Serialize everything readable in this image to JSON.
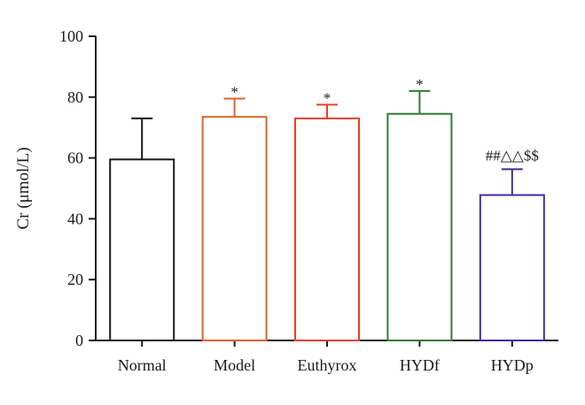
{
  "chart_data": {
    "type": "bar",
    "title": "",
    "xlabel": "",
    "ylabel": "Cr (μmol/L)",
    "ylim": [
      0,
      100
    ],
    "yticks": [
      0,
      20,
      40,
      60,
      80,
      100
    ],
    "grid": false,
    "categories": [
      "Normal",
      "Model",
      "Euthyrox",
      "HYDf",
      "HYDp"
    ],
    "values": [
      59.5,
      73.5,
      73,
      74.5,
      47.8
    ],
    "errors": [
      13.5,
      6,
      4.5,
      7.5,
      8.5
    ],
    "colors": [
      "#1a1a1a",
      "#e0642a",
      "#e8402a",
      "#2e7d32",
      "#3a2fa0"
    ],
    "annotations": [
      "",
      "*",
      "*",
      "*",
      "##△△$$"
    ]
  }
}
